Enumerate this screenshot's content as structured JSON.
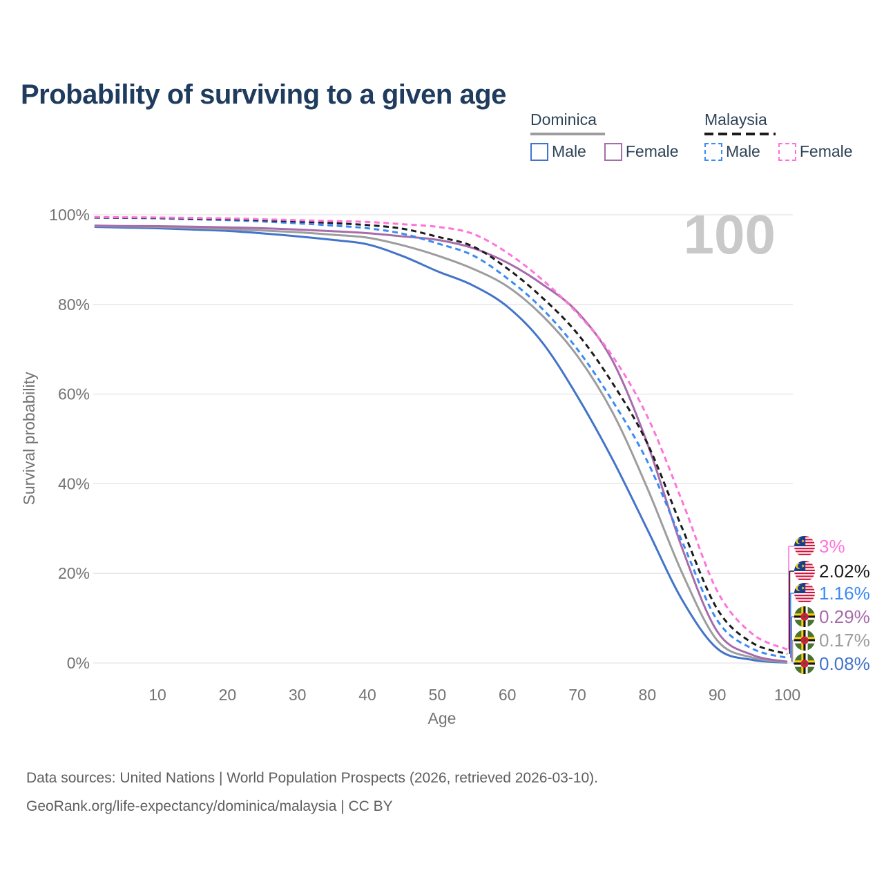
{
  "title": "Probability of surviving to a given age",
  "watermark": "100",
  "legend": {
    "groups": [
      {
        "country": "Dominica",
        "style": "solid",
        "underline_color": "#9D9DA0",
        "items": [
          {
            "label": "Male",
            "color": "#4374C9"
          },
          {
            "label": "Female",
            "color": "#A66CAB"
          }
        ]
      },
      {
        "country": "Malaysia",
        "style": "dashed",
        "underline_color": "#1B1B1B",
        "items": [
          {
            "label": "Male",
            "color": "#3B8BF2"
          },
          {
            "label": "Female",
            "color": "#FF74DA"
          }
        ]
      }
    ]
  },
  "chart_data": {
    "type": "line",
    "title": "Probability of surviving to a given age",
    "xlabel": "Age",
    "ylabel": "Survival probability",
    "xlim": [
      1,
      100
    ],
    "ylim": [
      0,
      100
    ],
    "grid": "horizontal-only",
    "legend_position": "top-right",
    "x_ticks": [
      10,
      20,
      30,
      40,
      50,
      60,
      70,
      80,
      90,
      100
    ],
    "x_tick_labels": [
      "10",
      "20",
      "30",
      "40",
      "50",
      "60",
      "70",
      "80",
      "90",
      "100"
    ],
    "y_ticks": [
      0,
      20,
      40,
      60,
      80,
      100
    ],
    "y_tick_labels": [
      "0%",
      "20%",
      "40%",
      "60%",
      "80%",
      "100%"
    ],
    "x": [
      1,
      5,
      10,
      15,
      20,
      25,
      30,
      35,
      40,
      45,
      50,
      55,
      60,
      65,
      70,
      75,
      80,
      85,
      90,
      95,
      100
    ],
    "series": [
      {
        "name": "Malaysia Female",
        "country": "Malaysia",
        "sex": "Female",
        "flag": "my",
        "style": "dashed",
        "color": "#FF74DA",
        "end_label": "3%",
        "values": [
          99.5,
          99.45,
          99.4,
          99.3,
          99.2,
          99.0,
          98.8,
          98.6,
          98.4,
          97.9,
          97.3,
          95.8,
          91.5,
          85.5,
          78.0,
          68.5,
          55.0,
          36.0,
          16.0,
          6.5,
          3.0
        ]
      },
      {
        "name": "Malaysia Both sexes",
        "country": "Malaysia",
        "sex": "Both sexes",
        "flag": "my",
        "style": "dashed",
        "color": "#1B1B1B",
        "end_label": "2.02%",
        "values": [
          99.4,
          99.35,
          99.3,
          99.15,
          99.0,
          98.8,
          98.5,
          98.15,
          97.7,
          96.9,
          95.1,
          93.0,
          88.0,
          81.5,
          73.5,
          62.5,
          49.0,
          30.0,
          12.0,
          4.5,
          2.02
        ]
      },
      {
        "name": "Malaysia Male",
        "country": "Malaysia",
        "sex": "Male",
        "flag": "my",
        "style": "dashed",
        "color": "#3B8BF2",
        "end_label": "1.16%",
        "values": [
          99.35,
          99.3,
          99.2,
          99.0,
          98.8,
          98.5,
          98.1,
          97.6,
          97.0,
          95.8,
          93.6,
          91.0,
          85.8,
          79.0,
          70.0,
          58.5,
          45.0,
          27.0,
          9.5,
          3.2,
          1.16
        ]
      },
      {
        "name": "Dominica Female",
        "country": "Dominica",
        "sex": "Female",
        "flag": "dm",
        "style": "solid",
        "color": "#A66CAB",
        "end_label": "0.29%",
        "values": [
          97.6,
          97.5,
          97.45,
          97.35,
          97.2,
          97.0,
          96.7,
          96.35,
          95.9,
          95.2,
          94.4,
          92.6,
          89.3,
          84.5,
          78.3,
          67.5,
          49.0,
          25.5,
          7.0,
          1.8,
          0.29
        ]
      },
      {
        "name": "Dominica Both sexes",
        "country": "Dominica",
        "sex": "Both sexes",
        "flag": "dm",
        "style": "solid",
        "color": "#9D9DA0",
        "end_label": "0.17%",
        "values": [
          97.45,
          97.4,
          97.3,
          97.05,
          96.8,
          96.5,
          96.1,
          95.55,
          94.9,
          93.2,
          90.9,
          88.0,
          84.0,
          77.5,
          68.5,
          56.0,
          39.0,
          20.0,
          5.0,
          1.2,
          0.17
        ]
      },
      {
        "name": "Dominica Male",
        "country": "Dominica",
        "sex": "Male",
        "flag": "dm",
        "style": "solid",
        "color": "#4374C9",
        "end_label": "0.08%",
        "values": [
          97.3,
          97.15,
          97.0,
          96.7,
          96.4,
          95.85,
          95.2,
          94.4,
          93.4,
          90.8,
          87.4,
          84.3,
          79.5,
          71.5,
          59.5,
          45.5,
          29.8,
          14.0,
          3.2,
          0.7,
          0.08
        ]
      }
    ]
  },
  "footer": {
    "line1": "Data sources: United Nations | World Population Prospects (2026, retrieved 2026-03-10).",
    "line2": "GeoRank.org/life-expectancy/dominica/malaysia | CC BY"
  }
}
